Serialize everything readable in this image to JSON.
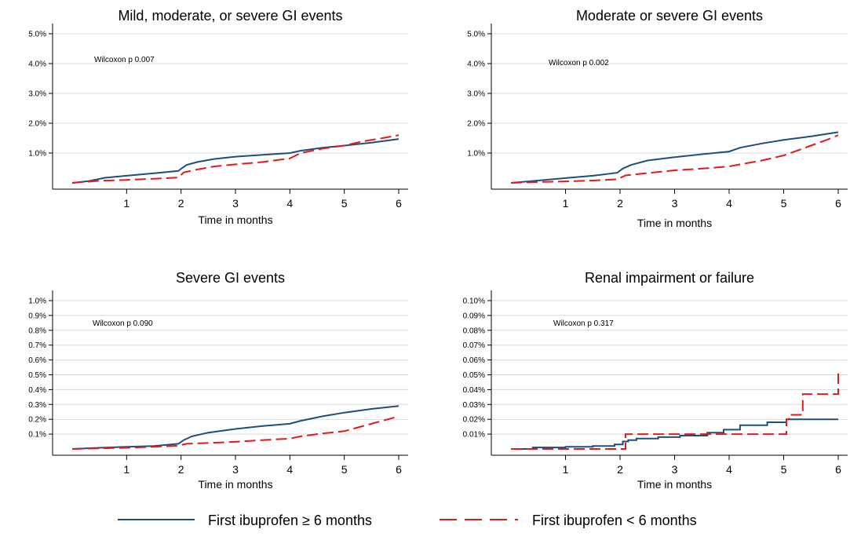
{
  "chart_data": [
    {
      "type": "line",
      "title": "Mild, moderate, or severe GI events",
      "xlabel": "Time in months",
      "ylabel": "",
      "xlim": [
        0,
        6
      ],
      "ylim": [
        0,
        5.0
      ],
      "xticks": [
        1,
        2,
        3,
        4,
        5,
        6
      ],
      "yticks": [
        1.0,
        2.0,
        3.0,
        4.0,
        5.0
      ],
      "ytick_labels": [
        "1.0%",
        "2.0%",
        "3.0%",
        "4.0%",
        "5.0%"
      ],
      "grid": true,
      "annotation": "Wilcoxon p 0.007",
      "series": [
        {
          "name": "First ibuprofen ≥ 6 months",
          "color": "#1f4e79",
          "dash": "solid",
          "x": [
            0,
            0.3,
            0.6,
            1.0,
            1.5,
            1.95,
            2.02,
            2.1,
            2.3,
            2.6,
            3.0,
            3.5,
            4.0,
            4.2,
            4.6,
            5.0,
            5.5,
            6.0
          ],
          "y": [
            0,
            0.06,
            0.17,
            0.24,
            0.32,
            0.4,
            0.5,
            0.6,
            0.7,
            0.8,
            0.88,
            0.94,
            1.0,
            1.08,
            1.18,
            1.25,
            1.35,
            1.47
          ]
        },
        {
          "name": "First ibuprofen < 6 months",
          "color": "#e31a1c",
          "dash": "dashed",
          "x": [
            0,
            0.5,
            1.0,
            1.5,
            1.95,
            2.05,
            2.3,
            2.6,
            3.0,
            3.5,
            4.0,
            4.2,
            4.6,
            5.0,
            5.3,
            5.7,
            6.0
          ],
          "y": [
            0,
            0.07,
            0.1,
            0.14,
            0.18,
            0.35,
            0.45,
            0.55,
            0.62,
            0.7,
            0.82,
            1.0,
            1.15,
            1.25,
            1.38,
            1.5,
            1.6
          ]
        }
      ]
    },
    {
      "type": "line",
      "title": "Moderate or severe GI events",
      "xlabel": "Time in months",
      "ylabel": "",
      "xlim": [
        0,
        6
      ],
      "ylim": [
        0,
        5.0
      ],
      "xticks": [
        1,
        2,
        3,
        4,
        5,
        6
      ],
      "yticks": [
        1.0,
        2.0,
        3.0,
        4.0,
        5.0
      ],
      "ytick_labels": [
        "1.0%",
        "2.0%",
        "3.0%",
        "4.0%",
        "5.0%"
      ],
      "grid": true,
      "annotation": "Wilcoxon p 0.002",
      "series": [
        {
          "name": "First ibuprofen ≥ 6 months",
          "color": "#1f4e79",
          "dash": "solid",
          "x": [
            0,
            0.5,
            1.0,
            1.5,
            1.95,
            2.05,
            2.2,
            2.5,
            3.0,
            3.5,
            4.0,
            4.2,
            4.6,
            5.0,
            5.5,
            6.0
          ],
          "y": [
            0,
            0.08,
            0.16,
            0.24,
            0.34,
            0.48,
            0.6,
            0.75,
            0.86,
            0.96,
            1.05,
            1.18,
            1.32,
            1.44,
            1.56,
            1.7
          ]
        },
        {
          "name": "First ibuprofen < 6 months",
          "color": "#e31a1c",
          "dash": "dashed",
          "x": [
            0,
            0.5,
            1.0,
            1.5,
            1.95,
            2.1,
            2.5,
            3.0,
            3.5,
            4.0,
            4.2,
            4.6,
            5.0,
            5.2,
            5.5,
            5.8,
            6.0
          ],
          "y": [
            0,
            0.03,
            0.05,
            0.08,
            0.12,
            0.25,
            0.33,
            0.42,
            0.48,
            0.55,
            0.62,
            0.75,
            0.92,
            1.05,
            1.25,
            1.45,
            1.6
          ]
        }
      ]
    },
    {
      "type": "line",
      "title": "Severe GI events",
      "xlabel": "Time in months",
      "ylabel": "",
      "xlim": [
        0,
        6
      ],
      "ylim": [
        0,
        1.0
      ],
      "xticks": [
        1,
        2,
        3,
        4,
        5,
        6
      ],
      "yticks": [
        0.1,
        0.2,
        0.3,
        0.4,
        0.5,
        0.6,
        0.7,
        0.8,
        0.9,
        1.0
      ],
      "ytick_labels": [
        "0.1%",
        "0.2%",
        "0.3%",
        "0.4%",
        "0.5%",
        "0.6%",
        "0.7%",
        "0.8%",
        "0.9%",
        "1.0%"
      ],
      "grid": true,
      "annotation": "Wilcoxon p 0.090",
      "series": [
        {
          "name": "First ibuprofen ≥ 6 months",
          "color": "#1f4e79",
          "dash": "solid",
          "x": [
            0,
            0.5,
            1.0,
            1.5,
            1.95,
            2.05,
            2.2,
            2.5,
            3.0,
            3.5,
            4.0,
            4.2,
            4.6,
            5.0,
            5.5,
            6.0
          ],
          "y": [
            0,
            0.008,
            0.015,
            0.02,
            0.035,
            0.06,
            0.085,
            0.11,
            0.135,
            0.155,
            0.17,
            0.19,
            0.22,
            0.245,
            0.27,
            0.29
          ]
        },
        {
          "name": "First ibuprofen < 6 months",
          "color": "#e31a1c",
          "dash": "dashed",
          "x": [
            0,
            0.5,
            1.0,
            1.5,
            1.95,
            2.1,
            2.5,
            3.0,
            3.5,
            4.0,
            4.2,
            4.6,
            5.0,
            5.3,
            5.7,
            6.0
          ],
          "y": [
            0,
            0.004,
            0.008,
            0.015,
            0.022,
            0.035,
            0.04,
            0.048,
            0.06,
            0.07,
            0.085,
            0.105,
            0.12,
            0.15,
            0.19,
            0.22
          ]
        }
      ]
    },
    {
      "type": "line",
      "title": "Renal impairment or failure",
      "xlabel": "Time in months",
      "ylabel": "",
      "xlim": [
        0,
        6
      ],
      "ylim": [
        0,
        0.1
      ],
      "xticks": [
        1,
        2,
        3,
        4,
        5,
        6
      ],
      "yticks": [
        0.01,
        0.02,
        0.03,
        0.04,
        0.05,
        0.06,
        0.07,
        0.08,
        0.09,
        0.1
      ],
      "ytick_labels": [
        "0.01%",
        "0.02%",
        "0.03%",
        "0.04%",
        "0.05%",
        "0.06%",
        "0.07%",
        "0.08%",
        "0.09%",
        "0.10%"
      ],
      "grid": true,
      "annotation": "Wilcoxon p 0.317",
      "series": [
        {
          "name": "First ibuprofen ≥ 6 months",
          "color": "#1f4e79",
          "dash": "solid",
          "step": true,
          "x": [
            0,
            0.4,
            1.0,
            1.5,
            1.9,
            2.05,
            2.15,
            2.3,
            2.7,
            3.1,
            3.6,
            3.9,
            4.2,
            4.7,
            5.05,
            6.0
          ],
          "y": [
            0,
            0.001,
            0.0015,
            0.002,
            0.003,
            0.005,
            0.006,
            0.007,
            0.008,
            0.009,
            0.011,
            0.013,
            0.016,
            0.018,
            0.02,
            0.02
          ]
        },
        {
          "name": "First ibuprofen < 6 months",
          "color": "#e31a1c",
          "dash": "dashed",
          "step": true,
          "x": [
            0,
            2.1,
            5.05,
            5.1,
            5.35,
            6.0,
            6.0
          ],
          "y": [
            0,
            0.01,
            0.02,
            0.023,
            0.037,
            0.037,
            0.051
          ]
        }
      ]
    }
  ],
  "legend": {
    "placement": "bottom",
    "items": [
      {
        "label": "First ibuprofen ≥ 6 months",
        "color": "#1f4e79",
        "dash": "solid"
      },
      {
        "label": "First ibuprofen < 6 months",
        "color": "#e31a1c",
        "dash": "dashed"
      }
    ]
  }
}
